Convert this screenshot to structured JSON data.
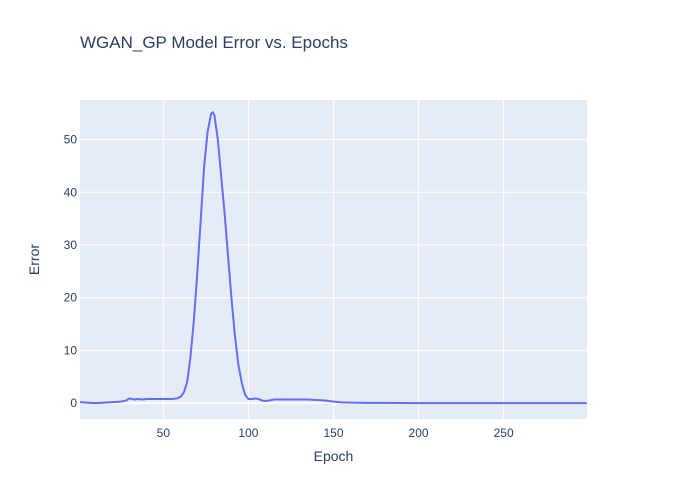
{
  "chart_data": {
    "type": "line",
    "title": "WGAN_GP Model Error vs. Epochs",
    "xlabel": "Epoch",
    "ylabel": "Error",
    "xlim": [
      1,
      299
    ],
    "ylim": [
      -3.0,
      57.5
    ],
    "x_ticks": [
      50,
      100,
      150,
      200,
      250
    ],
    "y_ticks": [
      0,
      10,
      20,
      30,
      40,
      50
    ],
    "grid": true,
    "legend": "none",
    "colors": {
      "line": "#636efa",
      "plot_bg": "#e5ecf6",
      "grid": "#ffffff",
      "text": "#2a3f5f"
    },
    "series": [
      {
        "x": [
          1,
          5,
          10,
          15,
          20,
          25,
          28,
          30,
          33,
          35,
          38,
          40,
          45,
          50,
          55,
          58,
          60,
          62,
          64,
          66,
          68,
          70,
          72,
          74,
          76,
          78,
          79,
          80,
          82,
          84,
          86,
          88,
          90,
          92,
          94,
          96,
          98,
          100,
          102,
          104,
          106,
          108,
          110,
          112,
          115,
          118,
          120,
          125,
          130,
          135,
          140,
          145,
          150,
          155,
          160,
          170,
          180,
          200,
          220,
          250,
          280,
          299
        ],
        "y": [
          0.2,
          0.1,
          0.0,
          0.1,
          0.2,
          0.3,
          0.5,
          0.9,
          0.7,
          0.8,
          0.7,
          0.8,
          0.8,
          0.8,
          0.8,
          0.9,
          1.2,
          2.0,
          4.0,
          9.0,
          16.0,
          25.0,
          35.0,
          45.0,
          51.5,
          54.8,
          55.2,
          54.6,
          50.0,
          43.0,
          36.0,
          28.0,
          20.0,
          13.0,
          7.5,
          4.0,
          1.6,
          0.8,
          0.8,
          0.9,
          0.8,
          0.5,
          0.4,
          0.5,
          0.7,
          0.7,
          0.7,
          0.7,
          0.7,
          0.7,
          0.6,
          0.5,
          0.3,
          0.15,
          0.1,
          0.05,
          0.05,
          0.0,
          0.0,
          0.0,
          0.0,
          0.0
        ]
      }
    ]
  }
}
